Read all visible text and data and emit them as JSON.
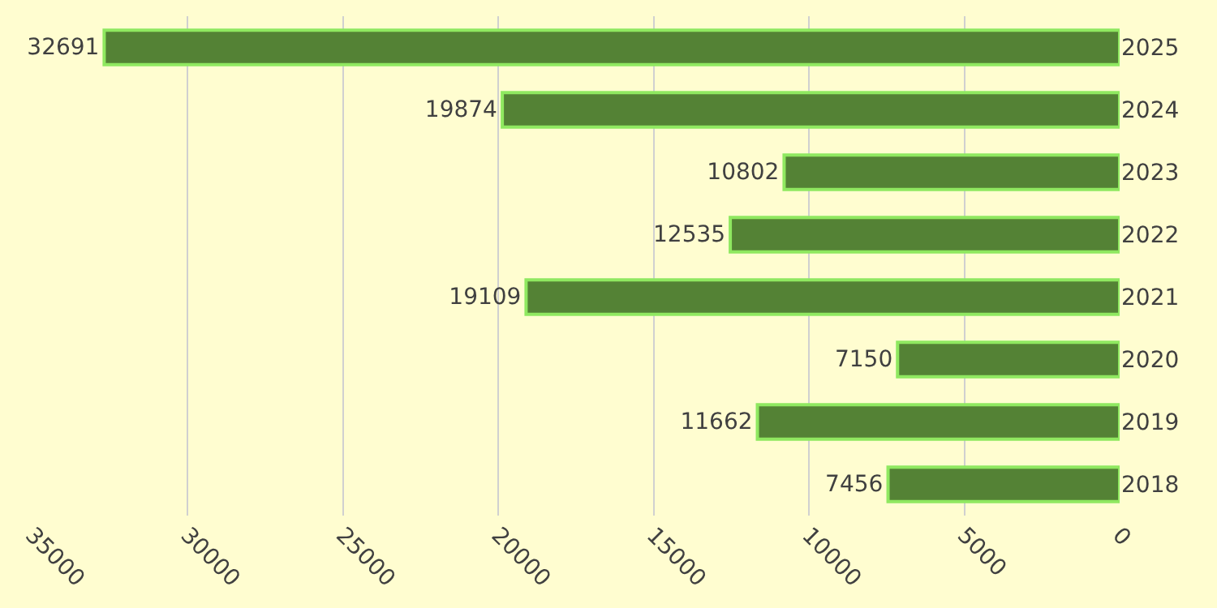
{
  "chart_data": {
    "type": "bar",
    "orientation": "horizontal",
    "categories": [
      "2025",
      "2024",
      "2023",
      "2022",
      "2021",
      "2020",
      "2019",
      "2018"
    ],
    "values": [
      32691,
      19874,
      10802,
      12535,
      19109,
      7150,
      11662,
      7456
    ],
    "color": "#548235",
    "xlim": [
      35000,
      0
    ],
    "xticks": [
      35000,
      30000,
      25000,
      20000,
      15000,
      10000,
      5000,
      0
    ],
    "grid": "x",
    "data_labels": true,
    "legend": false
  }
}
